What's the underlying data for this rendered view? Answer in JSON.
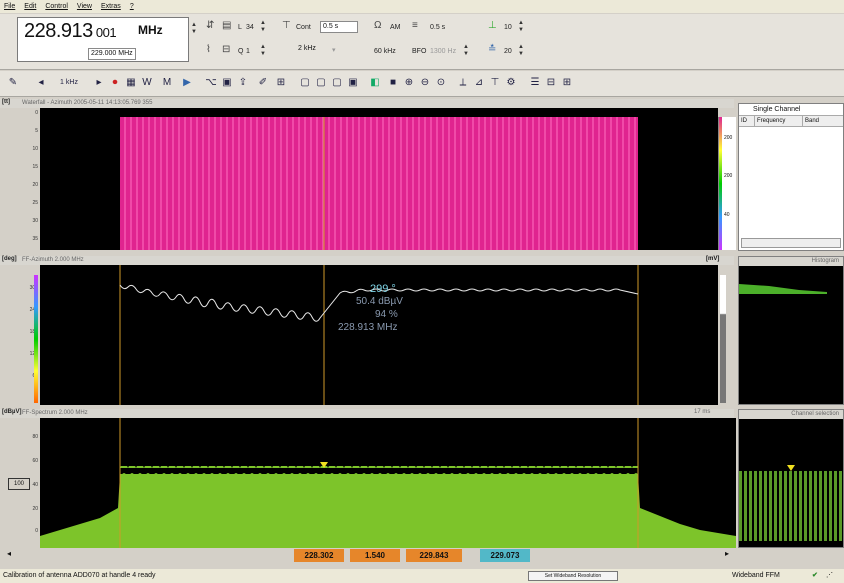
{
  "menu": [
    "File",
    "Edit",
    "Control",
    "View",
    "Extras",
    "?"
  ],
  "frequency": {
    "main": "228.913",
    "fine": "001",
    "unit": "MHz",
    "step": "229.000 MHz"
  },
  "toolbar1": {
    "dial_a_value": "34",
    "dial_b_value": "1",
    "cont_label": "Cont",
    "cont_value": "0.5 s",
    "bw_value": "2 kHz",
    "demod": "AM",
    "meas_time": "0.5 s",
    "span_label": "60 kHz",
    "bfo_label": "BFO",
    "bfo_value": "1300 Hz",
    "att_value": "10",
    "thr_value": "20"
  },
  "toolbar2": {
    "step_label": "1 kHz"
  },
  "waterfall": {
    "label": "[tt]",
    "title": "Waterfall - Azimuth 2005-05-11 14:13:05.769 355",
    "scale_ticks": [
      "200",
      "200",
      "40"
    ],
    "yticks": [
      "0",
      "5",
      "10",
      "15",
      "20",
      "25",
      "30",
      "35"
    ]
  },
  "azimuth": {
    "label": "[deg]",
    "title": "FF-Azimuth 2.000 MHz",
    "corner_label": "[mV]",
    "bearing": "299 °",
    "level": "50.4 dBµV",
    "quality": "94 %",
    "freq": "228.913 MHz",
    "yticks": [
      "300",
      "240",
      "180",
      "120",
      "60",
      "0"
    ]
  },
  "histogram": {
    "title": "Histogram"
  },
  "spectrum": {
    "label": "[dBµV]",
    "title": "FF-Spectrum 2.000 MHz",
    "time_label": "17 ms",
    "yticks": [
      "80",
      "60",
      "40",
      "20",
      "0"
    ],
    "marker": "100"
  },
  "channel_selection": {
    "title": "Channel selection"
  },
  "channel_list": {
    "title": "Single Channel",
    "col_id": "ID",
    "col_freq": "Frequency",
    "col_band": "Band"
  },
  "bottom_values": {
    "start": "228.302",
    "span": "1.540",
    "stop": "229.843",
    "center": "229.073"
  },
  "status": {
    "message": "Calibration of antenna ADD070 at handle 4 ready",
    "mode": "Wideband FFM",
    "button": "Set Wideband Resolution"
  },
  "colors": {
    "waterfall": "#e0248f",
    "spectrum": "#7dc42a",
    "cursor": "#d09a2a",
    "bearing": "#7fd4e6"
  }
}
